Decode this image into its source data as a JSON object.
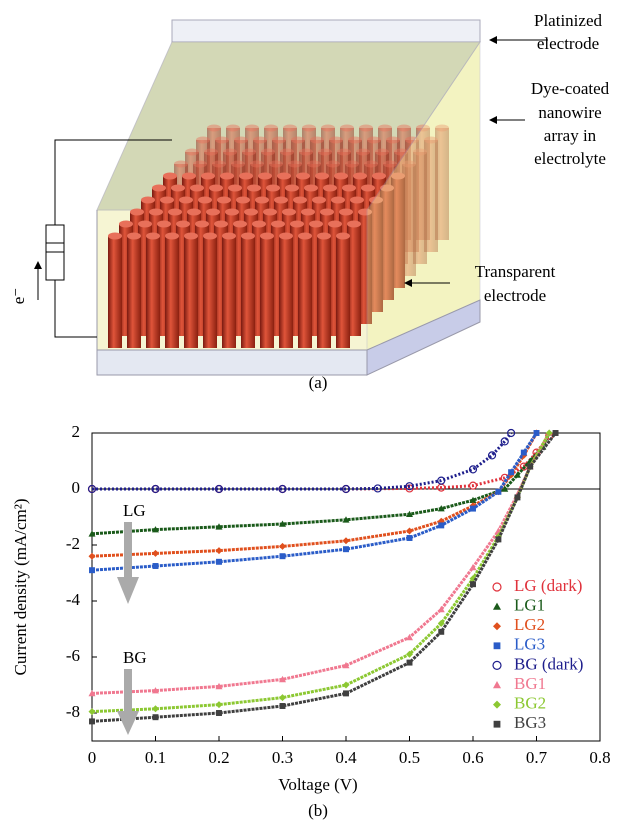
{
  "diagram": {
    "platinized_label": [
      "Platinized",
      "electrode"
    ],
    "nanowire_label": [
      "Dye-coated",
      "nanowire",
      "array in",
      "electrolyte"
    ],
    "transparent_label": [
      "Transparent",
      "electrode"
    ],
    "electron_label": "e⁻",
    "caption": "(a)"
  },
  "chart_data": {
    "type": "scatter",
    "caption": "(b)",
    "x_label": "Voltage (V)",
    "y_label": "Current density (mA/cm²)",
    "xlim": [
      0,
      0.8
    ],
    "xticks": [
      0,
      0.1,
      0.2,
      0.3,
      0.4,
      0.5,
      0.6,
      0.7,
      0.8
    ],
    "ylim": [
      -9,
      2
    ],
    "yticks": [
      2,
      0,
      -2,
      -4,
      -6,
      -8
    ],
    "zero_line": true,
    "annotations": [
      "LG",
      "BG"
    ],
    "legend": "right",
    "series": [
      {
        "name": "LG (dark)",
        "color": "#e0323c",
        "marker": "circle-open",
        "x": [
          0,
          0.1,
          0.2,
          0.3,
          0.4,
          0.5,
          0.55,
          0.6,
          0.65,
          0.68,
          0.7,
          0.72
        ],
        "values": [
          0,
          0,
          0,
          0,
          0,
          0.02,
          0.05,
          0.12,
          0.4,
          0.8,
          1.3,
          1.9
        ]
      },
      {
        "name": "LG1",
        "color": "#1a5a1a",
        "marker": "triangle",
        "x": [
          0,
          0.1,
          0.2,
          0.3,
          0.4,
          0.5,
          0.55,
          0.6,
          0.65,
          0.67,
          0.69,
          0.71,
          0.72
        ],
        "values": [
          -1.6,
          -1.45,
          -1.35,
          -1.25,
          -1.1,
          -0.9,
          -0.7,
          -0.4,
          0,
          0.5,
          1.0,
          1.5,
          2
        ]
      },
      {
        "name": "LG2",
        "color": "#e0501e",
        "marker": "diamond",
        "x": [
          0,
          0.1,
          0.2,
          0.3,
          0.4,
          0.5,
          0.55,
          0.6,
          0.64,
          0.66,
          0.68,
          0.7
        ],
        "values": [
          -2.4,
          -2.3,
          -2.2,
          -2.05,
          -1.85,
          -1.5,
          -1.15,
          -0.6,
          -0.1,
          0.5,
          1.2,
          2
        ]
      },
      {
        "name": "LG3",
        "color": "#2a5cc8",
        "marker": "square",
        "x": [
          0,
          0.1,
          0.2,
          0.3,
          0.4,
          0.5,
          0.55,
          0.6,
          0.64,
          0.66,
          0.68,
          0.7
        ],
        "values": [
          -2.9,
          -2.75,
          -2.6,
          -2.4,
          -2.15,
          -1.75,
          -1.3,
          -0.7,
          -0.1,
          0.6,
          1.3,
          2
        ]
      },
      {
        "name": "BG (dark)",
        "color": "#1e1e8c",
        "marker": "circle-open",
        "x": [
          0,
          0.1,
          0.2,
          0.3,
          0.4,
          0.45,
          0.5,
          0.55,
          0.6,
          0.63,
          0.65,
          0.66
        ],
        "values": [
          0,
          0,
          0,
          0,
          0,
          0.02,
          0.1,
          0.3,
          0.7,
          1.2,
          1.7,
          2
        ]
      },
      {
        "name": "BG1",
        "color": "#f07890",
        "marker": "triangle",
        "x": [
          0,
          0.1,
          0.2,
          0.3,
          0.4,
          0.5,
          0.55,
          0.6,
          0.64,
          0.67,
          0.69,
          0.72
        ],
        "values": [
          -7.3,
          -7.2,
          -7.05,
          -6.8,
          -6.3,
          -5.3,
          -4.3,
          -2.8,
          -1.5,
          -0.2,
          0.8,
          2
        ]
      },
      {
        "name": "BG2",
        "color": "#8cc832",
        "marker": "diamond",
        "x": [
          0,
          0.1,
          0.2,
          0.3,
          0.4,
          0.5,
          0.55,
          0.6,
          0.64,
          0.67,
          0.69,
          0.72
        ],
        "values": [
          -7.95,
          -7.85,
          -7.7,
          -7.45,
          -7.0,
          -5.9,
          -4.8,
          -3.2,
          -1.7,
          -0.3,
          0.8,
          2
        ]
      },
      {
        "name": "BG3",
        "color": "#404040",
        "marker": "square",
        "x": [
          0,
          0.1,
          0.2,
          0.3,
          0.4,
          0.5,
          0.55,
          0.6,
          0.64,
          0.67,
          0.69,
          0.73
        ],
        "values": [
          -8.3,
          -8.15,
          -8.0,
          -7.75,
          -7.3,
          -6.2,
          -5.1,
          -3.4,
          -1.8,
          -0.3,
          0.8,
          2
        ]
      }
    ]
  }
}
